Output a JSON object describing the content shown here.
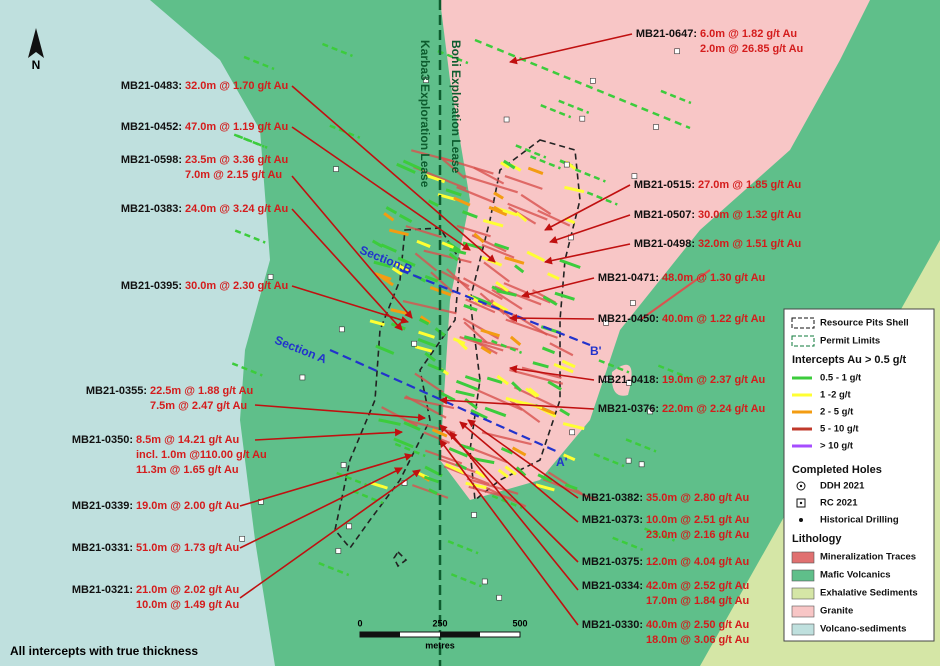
{
  "map": {
    "north_label": "N",
    "leases": [
      "Boni Exploration Lease",
      "Karba3 Exploration Lease"
    ],
    "sections": [
      {
        "name": "Section B",
        "end_label": "B'"
      },
      {
        "name": "Section A",
        "end_label": "A'"
      }
    ],
    "callouts": [
      {
        "id": "MB21-0483:",
        "lines": [
          "32.0m @ 1.70 g/t Au"
        ]
      },
      {
        "id": "MB21-0452:",
        "lines": [
          "47.0m @ 1.19 g/t Au"
        ]
      },
      {
        "id": "MB21-0598:",
        "lines": [
          "23.5m @ 3.36 g/t Au",
          "7.0m @ 2.15 g/t Au"
        ]
      },
      {
        "id": "MB21-0383:",
        "lines": [
          "24.0m @ 3.24 g/t Au"
        ]
      },
      {
        "id": "MB21-0395:",
        "lines": [
          "30.0m @ 2.30 g/t Au"
        ]
      },
      {
        "id": "MB21-0355:",
        "lines": [
          "22.5m @ 1.88 g/t Au",
          "7.5m @ 2.47 g/t Au"
        ]
      },
      {
        "id": "MB21-0350:",
        "lines": [
          "8.5m @ 14.21 g/t Au",
          "incl. 1.0m @110.00 g/t Au",
          "11.3m @ 1.65 g/t Au"
        ]
      },
      {
        "id": "MB21-0339:",
        "lines": [
          "19.0m @ 2.00 g/t Au"
        ]
      },
      {
        "id": "MB21-0331:",
        "lines": [
          "51.0m @ 1.73 g/t Au"
        ]
      },
      {
        "id": "MB21-0321:",
        "lines": [
          "21.0m @ 2.02 g/t Au",
          "10.0m @ 1.49 g/t Au"
        ]
      },
      {
        "id": "MB21-0647:",
        "lines": [
          "6.0m @ 1.82 g/t Au",
          "2.0m @ 26.85 g/t Au"
        ]
      },
      {
        "id": "MB21-0515:",
        "lines": [
          "27.0m @ 1.85 g/t Au"
        ]
      },
      {
        "id": "MB21-0507:",
        "lines": [
          "30.0m @ 1.32 g/t Au"
        ]
      },
      {
        "id": "MB21-0498:",
        "lines": [
          "32.0m @ 1.51 g/t Au"
        ]
      },
      {
        "id": "MB21-0471:",
        "lines": [
          "48.0m @ 1.30 g/t Au"
        ]
      },
      {
        "id": "MB21-0450:",
        "lines": [
          "40.0m @ 1.22 g/t Au"
        ]
      },
      {
        "id": "MB21-0418:",
        "lines": [
          "19.0m @ 2.37 g/t Au"
        ]
      },
      {
        "id": "MB21-0376:",
        "lines": [
          "22.0m @ 2.24 g/t Au"
        ]
      },
      {
        "id": "MB21-0382:",
        "lines": [
          "35.0m @ 2.80 g/t Au"
        ]
      },
      {
        "id": "MB21-0373:",
        "lines": [
          "10.0m @ 2.51 g/t Au",
          "23.0m @ 2.16 g/t Au"
        ]
      },
      {
        "id": "MB21-0375:",
        "lines": [
          "12.0m @ 4.04 g/t Au"
        ]
      },
      {
        "id": "MB21-0334:",
        "lines": [
          "42.0m @ 2.52 g/t Au",
          "17.0m @ 1.84 g/t Au"
        ]
      },
      {
        "id": "MB21-0330:",
        "lines": [
          "40.0m @ 2.50 g/t Au",
          "18.0m @ 3.06 g/t Au"
        ]
      }
    ],
    "scale": {
      "ticks": [
        "0",
        "250",
        "500"
      ],
      "unit": "metres"
    },
    "note": "All intercepts with true thickness"
  },
  "legend": {
    "outlines": [
      "Resource Pits Shell",
      "Permit Limits"
    ],
    "intercepts_title": "Intercepts Au > 0.5 g/t",
    "intercepts": [
      "0.5 - 1 g/t",
      "1 -2 g/t",
      "2 - 5 g/t",
      "5 - 10 g/t",
      "> 10 g/t"
    ],
    "holes_title": "Completed Holes",
    "holes": [
      "DDH 2021",
      "RC 2021",
      "Historical Drilling"
    ],
    "lithology_title": "Lithology",
    "lithology": [
      "Mineralization Traces",
      "Mafic Volcanics",
      "Exhalative Sediments",
      "Granite",
      "Volcano-sediments"
    ]
  }
}
